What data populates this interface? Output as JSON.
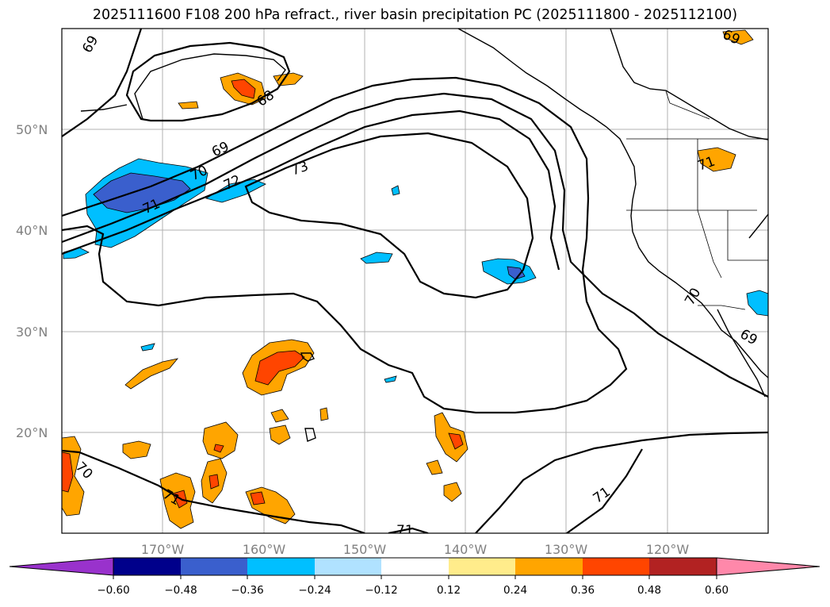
{
  "title": "2025111600 F108 200 hPa refract., river basin precipitation PC (2025111800 - 2025112100)",
  "map": {
    "lat_labels": [
      "50°N",
      "40°N",
      "30°N",
      "20°N"
    ],
    "lon_labels": [
      "170°W",
      "160°W",
      "150°W",
      "140°W",
      "130°W",
      "120°W"
    ],
    "extent": {
      "lon_min": -180,
      "lon_max": -110,
      "lat_min": 10,
      "lat_max": 60
    },
    "contour_labels": [
      "69",
      "68",
      "69",
      "70",
      "72",
      "73",
      "71",
      "71",
      "70",
      "69",
      "70",
      "71",
      "71",
      "71",
      "69"
    ]
  },
  "colorbar": {
    "ticks": [
      "−0.60",
      "−0.48",
      "−0.36",
      "−0.24",
      "−0.12",
      "0.12",
      "0.24",
      "0.36",
      "0.48",
      "0.60"
    ],
    "colors": [
      "#9932cc",
      "#00008b",
      "#3a5fcd",
      "#00bfff",
      "#b0e2ff",
      "#ffffff",
      "#ffec8b",
      "#ffa500",
      "#ff4500",
      "#b22222",
      "#ff88aa"
    ]
  }
}
